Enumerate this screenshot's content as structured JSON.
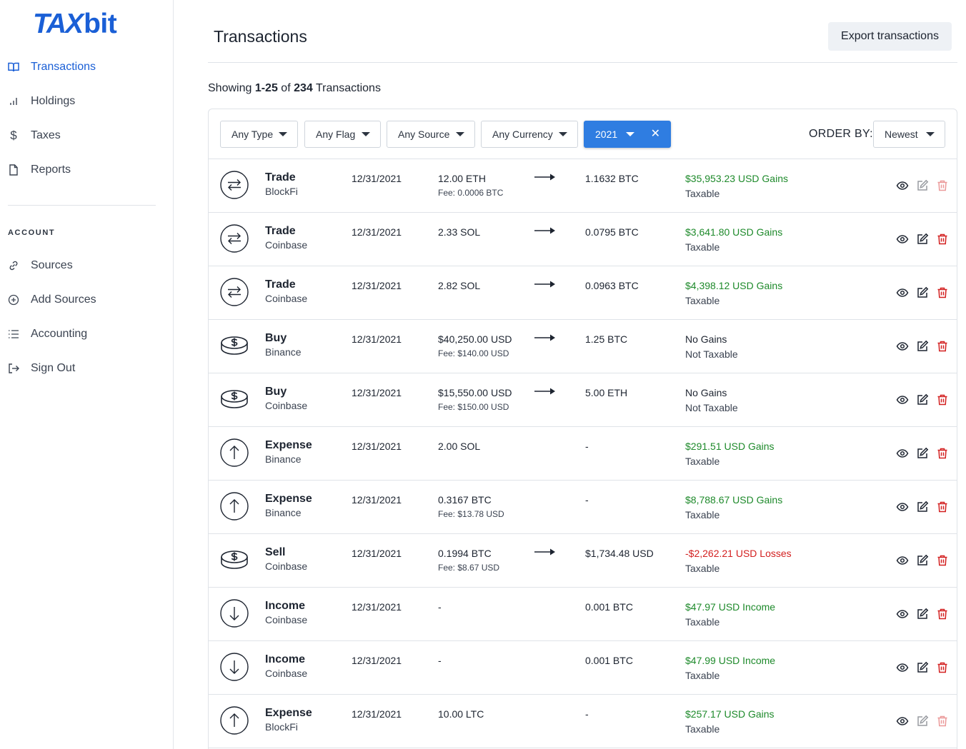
{
  "app": {
    "logo_main": "TAX",
    "logo_suffix": "bit"
  },
  "sidebar": {
    "nav": [
      {
        "label": "Transactions",
        "icon": "book-open-icon",
        "active": true
      },
      {
        "label": "Holdings",
        "icon": "bar-chart-icon",
        "active": false
      },
      {
        "label": "Taxes",
        "icon": "dollar-icon",
        "active": false
      },
      {
        "label": "Reports",
        "icon": "file-icon",
        "active": false
      }
    ],
    "section_label": "ACCOUNT",
    "account": [
      {
        "label": "Sources",
        "icon": "link-icon"
      },
      {
        "label": "Add Sources",
        "icon": "plus-circle-icon"
      },
      {
        "label": "Accounting",
        "icon": "list-icon"
      },
      {
        "label": "Sign Out",
        "icon": "sign-out-icon"
      }
    ]
  },
  "header": {
    "title": "Transactions",
    "export_label": "Export transactions"
  },
  "summary": {
    "prefix": "Showing ",
    "range": "1-25",
    "middle": " of ",
    "total": "234",
    "suffix": " Transactions"
  },
  "filters": {
    "type": "Any Type",
    "flag": "Any Flag",
    "source": "Any Source",
    "currency": "Any Currency",
    "year": "2021",
    "clear_glyph": "✕",
    "order_by_label": "ORDER BY:",
    "order_by_value": "Newest"
  },
  "colors": {
    "accent": "#1a5fd6",
    "gain": "#1e8a2b",
    "loss": "#d32020",
    "delete": "#d32020"
  },
  "transactions": [
    {
      "type": "Trade",
      "icon": "swap-icon",
      "source": "BlockFi",
      "date": "12/31/2021",
      "sent": "12.00 ETH",
      "fee": "Fee: 0.0006 BTC",
      "has_arrow": true,
      "received": "1.1632 BTC",
      "gains": "$35,953.23 USD Gains",
      "gains_tone": "green",
      "taxable": "Taxable",
      "actions_enabled": false
    },
    {
      "type": "Trade",
      "icon": "swap-icon",
      "source": "Coinbase",
      "date": "12/31/2021",
      "sent": "2.33 SOL",
      "fee": "",
      "has_arrow": true,
      "received": "0.0795 BTC",
      "gains": "$3,641.80 USD Gains",
      "gains_tone": "green",
      "taxable": "Taxable",
      "actions_enabled": true
    },
    {
      "type": "Trade",
      "icon": "swap-icon",
      "source": "Coinbase",
      "date": "12/31/2021",
      "sent": "2.82 SOL",
      "fee": "",
      "has_arrow": true,
      "received": "0.0963 BTC",
      "gains": "$4,398.12 USD Gains",
      "gains_tone": "green",
      "taxable": "Taxable",
      "actions_enabled": true
    },
    {
      "type": "Buy",
      "icon": "coins-icon",
      "source": "Binance",
      "date": "12/31/2021",
      "sent": "$40,250.00 USD",
      "fee": "Fee: $140.00 USD",
      "has_arrow": true,
      "received": "1.25 BTC",
      "gains": "No Gains",
      "gains_tone": "plain",
      "taxable": "Not Taxable",
      "actions_enabled": true
    },
    {
      "type": "Buy",
      "icon": "coins-icon",
      "source": "Coinbase",
      "date": "12/31/2021",
      "sent": "$15,550.00 USD",
      "fee": "Fee: $150.00 USD",
      "has_arrow": true,
      "received": "5.00 ETH",
      "gains": "No Gains",
      "gains_tone": "plain",
      "taxable": "Not Taxable",
      "actions_enabled": true
    },
    {
      "type": "Expense",
      "icon": "arrow-up-circle-icon",
      "source": "Binance",
      "date": "12/31/2021",
      "sent": "2.00 SOL",
      "fee": "",
      "has_arrow": false,
      "received": "-",
      "gains": "$291.51 USD Gains",
      "gains_tone": "green",
      "taxable": "Taxable",
      "actions_enabled": true
    },
    {
      "type": "Expense",
      "icon": "arrow-up-circle-icon",
      "source": "Binance",
      "date": "12/31/2021",
      "sent": "0.3167 BTC",
      "fee": "Fee: $13.78 USD",
      "has_arrow": false,
      "received": "-",
      "gains": "$8,788.67 USD Gains",
      "gains_tone": "green",
      "taxable": "Taxable",
      "actions_enabled": true
    },
    {
      "type": "Sell",
      "icon": "coins-icon",
      "source": "Coinbase",
      "date": "12/31/2021",
      "sent": "0.1994 BTC",
      "fee": "Fee: $8.67 USD",
      "has_arrow": true,
      "received": "$1,734.48 USD",
      "gains": "-$2,262.21 USD Losses",
      "gains_tone": "red",
      "taxable": "Taxable",
      "actions_enabled": true
    },
    {
      "type": "Income",
      "icon": "arrow-down-circle-icon",
      "source": "Coinbase",
      "date": "12/31/2021",
      "sent": "-",
      "fee": "",
      "has_arrow": false,
      "received": "0.001 BTC",
      "gains": "$47.97 USD Income",
      "gains_tone": "green",
      "taxable": "Taxable",
      "actions_enabled": true
    },
    {
      "type": "Income",
      "icon": "arrow-down-circle-icon",
      "source": "Coinbase",
      "date": "12/31/2021",
      "sent": "-",
      "fee": "",
      "has_arrow": false,
      "received": "0.001 BTC",
      "gains": "$47.99 USD Income",
      "gains_tone": "green",
      "taxable": "Taxable",
      "actions_enabled": true
    },
    {
      "type": "Expense",
      "icon": "arrow-up-circle-icon",
      "source": "BlockFi",
      "date": "12/31/2021",
      "sent": "10.00 LTC",
      "fee": "",
      "has_arrow": false,
      "received": "-",
      "gains": "$257.17 USD Gains",
      "gains_tone": "green",
      "taxable": "Taxable",
      "actions_enabled": false
    }
  ]
}
